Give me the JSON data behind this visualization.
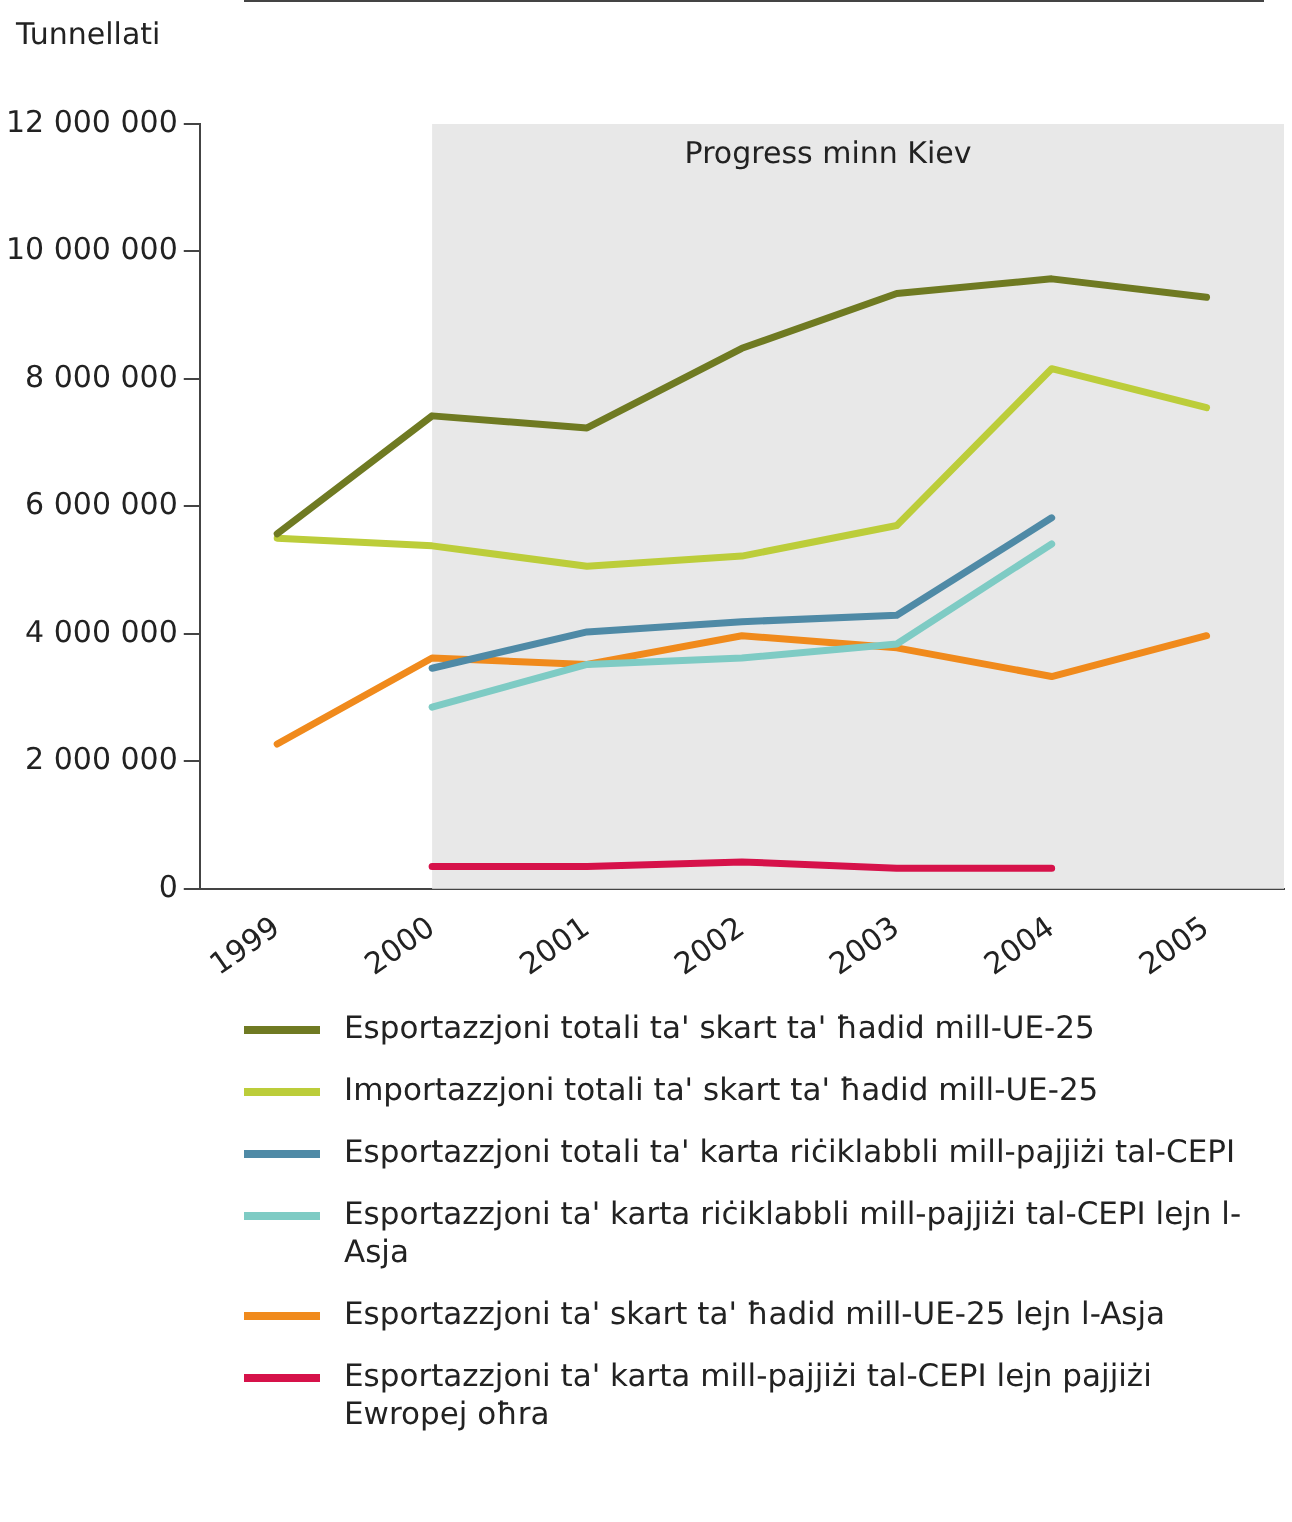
{
  "chart_data": {
    "type": "line",
    "ylabel": "Tunnellati",
    "x": [
      1999,
      2000,
      2001,
      2002,
      2003,
      2004,
      2005
    ],
    "xlim": [
      1998.5,
      2005.5
    ],
    "xticks": [
      1999,
      2000,
      2001,
      2002,
      2003,
      2004,
      2005
    ],
    "ylim": [
      0,
      12000000
    ],
    "yticks": [
      {
        "value": 0,
        "label": "0"
      },
      {
        "value": 2000000,
        "label": "2 000 000"
      },
      {
        "value": 4000000,
        "label": "4 000 000"
      },
      {
        "value": 6000000,
        "label": "6 000 000"
      },
      {
        "value": 8000000,
        "label": "8 000 000"
      },
      {
        "value": 10000000,
        "label": "10 000 000"
      },
      {
        "value": 12000000,
        "label": "12 000 000"
      }
    ],
    "grid": false,
    "legend": "bottom",
    "marker": "none",
    "line_style": "solid",
    "bands": [
      {
        "axis": "x",
        "from": 2000,
        "to": 2005.5,
        "label": "Progress minn Kiev",
        "color": "#e8e8e8"
      }
    ],
    "series": [
      {
        "name": "Esportazzjoni totali ta' skart ta' ħadid mill-UE-25",
        "color": "#6f7a22",
        "values": [
          5570000,
          7420000,
          7230000,
          8480000,
          9340000,
          9570000,
          9280000
        ]
      },
      {
        "name": "Importazzjoni totali ta' skart ta' ħadid mill-UE-25",
        "color": "#bccd3a",
        "values": [
          5500000,
          5380000,
          5060000,
          5220000,
          5700000,
          8160000,
          7550000
        ]
      },
      {
        "name": "Esportazzjoni totali ta' karta riċiklabbli mill-pajjiżi tal-CEPI",
        "color": "#4f8aa6",
        "values": [
          null,
          3460000,
          4030000,
          4190000,
          4290000,
          5820000,
          null
        ]
      },
      {
        "name": "Esportazzjoni ta' karta riċiklabbli mill-pajjiżi tal-CEPI lejn l-Asja",
        "color": "#7ecbc4",
        "values": [
          null,
          2850000,
          3520000,
          3620000,
          3840000,
          5410000,
          null
        ]
      },
      {
        "name": "Esportazzjoni ta' skart ta' ħadid mill-UE-25 lejn l-Asja",
        "color": "#f08a1c",
        "values": [
          2270000,
          3620000,
          3520000,
          3970000,
          3780000,
          3330000,
          3970000
        ]
      },
      {
        "name": "Esportazzjoni ta' karta mill-pajjiżi tal-CEPI lejn pajjiżi Ewropej oħra",
        "color": "#d6124a",
        "values": [
          null,
          350000,
          350000,
          420000,
          320000,
          320000,
          null
        ]
      }
    ]
  }
}
